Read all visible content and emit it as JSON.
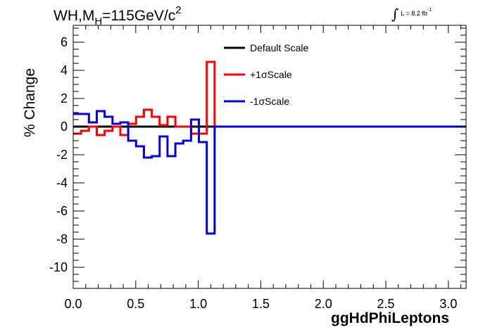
{
  "title": {
    "prefix": "WH,M",
    "subscript": "H",
    "value": "=115GeV/c",
    "superscript": "2"
  },
  "luminosity": {
    "text": "L = 8.2 fb",
    "superscript": "-1"
  },
  "colors": {
    "default": "#000000",
    "plus": "#ff0000",
    "minus": "#0000e0"
  },
  "chart_data": {
    "type": "line",
    "style": "step histogram",
    "xlabel": "ggHdPhiLeptons",
    "ylabel": "% Change",
    "xlim": [
      0,
      3.1416
    ],
    "ylim": [
      -11.5,
      7.2
    ],
    "x_ticks": [
      0.0,
      0.5,
      1.0,
      1.5,
      2.0,
      2.5,
      3.0
    ],
    "x_tick_labels": [
      "0.0",
      "0.5",
      "1.0",
      "1.5",
      "2.0",
      "2.5",
      "3.0"
    ],
    "y_ticks": [
      6,
      4,
      2,
      0,
      -2,
      -4,
      -6,
      -8,
      -10
    ],
    "y_tick_labels": [
      "6",
      "4",
      "2",
      "0",
      "-2",
      "-4",
      "-6",
      "-8",
      "-10"
    ],
    "grid": false,
    "legend_position": "top-center",
    "bin_edges": [
      0,
      0.0628,
      0.1257,
      0.1885,
      0.2513,
      0.3142,
      0.377,
      0.4398,
      0.5027,
      0.5655,
      0.6283,
      0.6912,
      0.754,
      0.8168,
      0.8796,
      0.9425,
      1.0053,
      1.0681,
      1.131,
      3.1416
    ],
    "series": [
      {
        "name": "Default Scale",
        "color": "#000000",
        "values": [
          0,
          0,
          0,
          0,
          0,
          0,
          0,
          0,
          0,
          0,
          0,
          0,
          0,
          0,
          0,
          0,
          0,
          0,
          0
        ]
      },
      {
        "name": "+1σScale",
        "color": "#ff0000",
        "values": [
          -0.5,
          -0.3,
          0.0,
          -0.6,
          -0.3,
          0.0,
          -0.6,
          0.2,
          0.7,
          1.2,
          0.7,
          0.1,
          0.7,
          0.0,
          0.0,
          -0.5,
          -0.5,
          4.6,
          0.0
        ]
      },
      {
        "name": "-1σScale",
        "color": "#0000e0",
        "values": [
          0.9,
          0.9,
          0.3,
          1.1,
          0.7,
          0.2,
          0.3,
          -1.0,
          -1.4,
          -2.2,
          -2.1,
          -0.7,
          -2.1,
          -1.2,
          -1.0,
          0.5,
          -1.1,
          -7.6,
          0.0
        ]
      }
    ]
  }
}
